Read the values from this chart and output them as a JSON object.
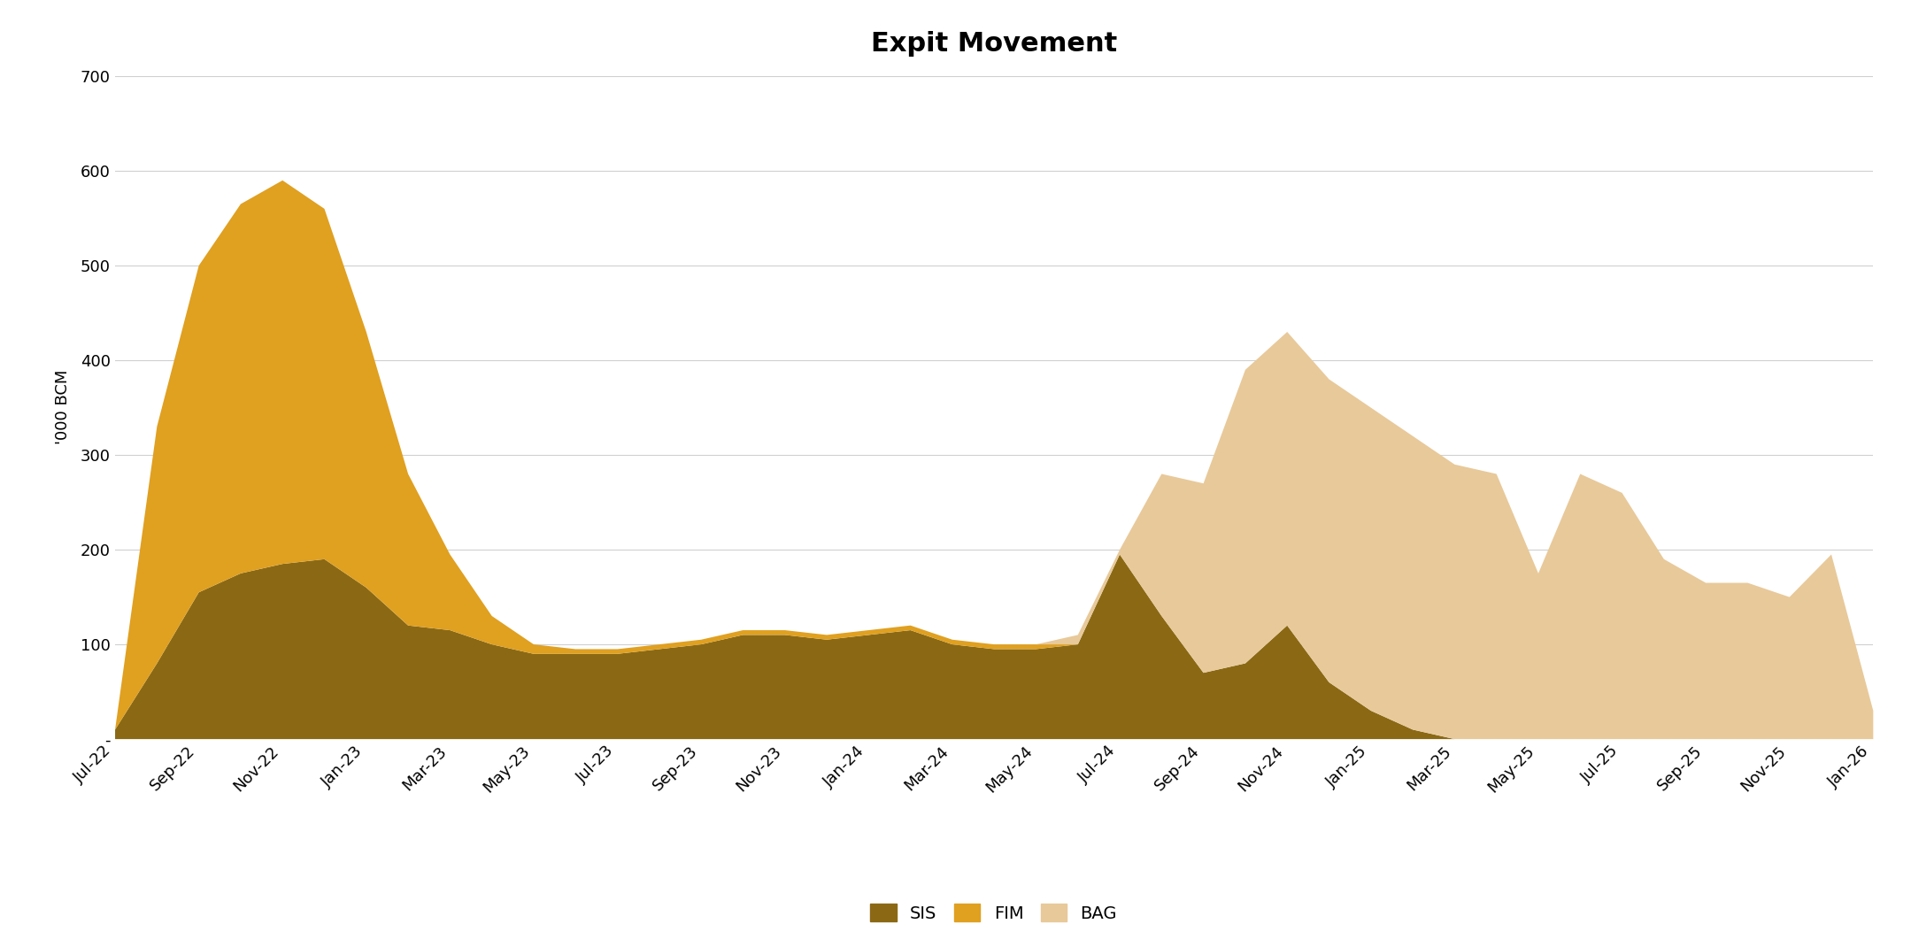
{
  "title": "Expit Movement",
  "ylabel": "'000 BCM",
  "colors": {
    "SIS": "#8B6914",
    "FIM": "#E0A020",
    "BAG": "#E8C99A"
  },
  "x_labels": [
    "Jul-22",
    "Sep-22",
    "Nov-22",
    "Jan-23",
    "Mar-23",
    "May-23",
    "Jul-23",
    "Sep-23",
    "Nov-23",
    "Jan-24",
    "Mar-24",
    "May-24",
    "Jul-24",
    "Sep-24",
    "Nov-24",
    "Jan-25",
    "Mar-25",
    "May-25",
    "Jul-25",
    "Sep-25",
    "Nov-25",
    "Jan-26"
  ],
  "x_tick_positions": [
    0,
    2,
    4,
    6,
    8,
    10,
    12,
    14,
    16,
    18,
    20,
    22,
    24,
    26,
    28,
    30,
    32,
    34,
    36,
    38,
    40,
    42
  ],
  "SIS": [
    10,
    80,
    155,
    175,
    185,
    190,
    160,
    120,
    115,
    100,
    90,
    90,
    90,
    95,
    100,
    110,
    110,
    105,
    110,
    115,
    100,
    95,
    95,
    100,
    195,
    130,
    70,
    80,
    120,
    60,
    30,
    10,
    0,
    0,
    0,
    0,
    0,
    0,
    0,
    0,
    0,
    0,
    0
  ],
  "FIM": [
    0,
    250,
    345,
    390,
    405,
    370,
    270,
    160,
    80,
    30,
    10,
    5,
    5,
    5,
    5,
    5,
    5,
    5,
    5,
    5,
    5,
    5,
    5,
    0,
    0,
    0,
    0,
    0,
    0,
    0,
    0,
    0,
    0,
    0,
    0,
    0,
    0,
    0,
    0,
    0,
    0,
    0,
    0
  ],
  "BAG": [
    0,
    0,
    0,
    0,
    0,
    0,
    0,
    0,
    0,
    0,
    0,
    0,
    0,
    0,
    0,
    0,
    0,
    0,
    0,
    0,
    0,
    0,
    0,
    10,
    5,
    150,
    200,
    310,
    310,
    320,
    320,
    310,
    290,
    280,
    175,
    280,
    260,
    190,
    165,
    165,
    150,
    195,
    30
  ],
  "ylim": [
    0,
    700
  ],
  "yticks": [
    0,
    100,
    200,
    300,
    400,
    500,
    600,
    700
  ],
  "ytick_labels": [
    "-",
    "100",
    "200",
    "300",
    "400",
    "500",
    "600",
    "700"
  ],
  "background_color": "#ffffff",
  "grid_color": "#d0d0d0",
  "title_fontsize": 22,
  "axis_fontsize": 13,
  "tick_fontsize": 13,
  "legend_fontsize": 14
}
